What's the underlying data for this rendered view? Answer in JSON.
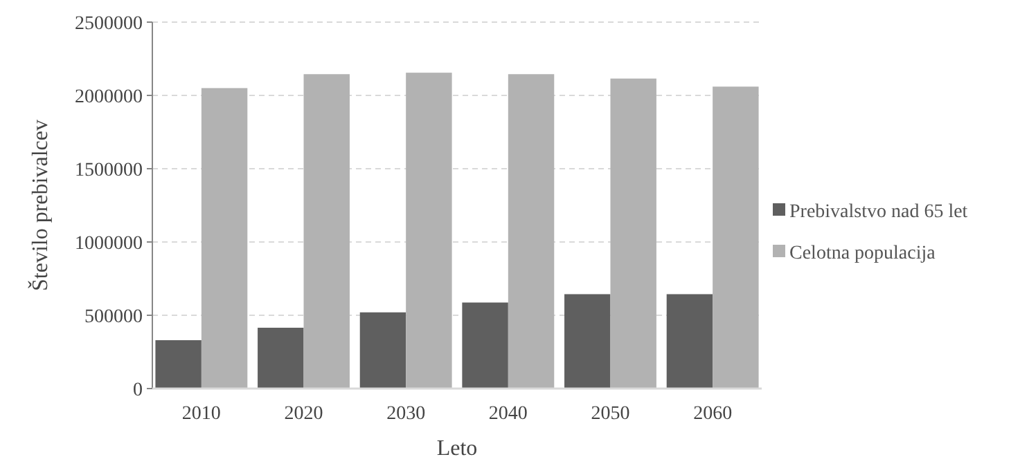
{
  "chart_data": {
    "type": "bar",
    "xlabel": "Leto",
    "ylabel": "Število prebivalcev",
    "categories": [
      "2010",
      "2020",
      "2030",
      "2040",
      "2050",
      "2060"
    ],
    "series": [
      {
        "name": "Prebivalstvo nad 65 let",
        "color": "#5f5f5f",
        "values": [
          330000,
          415000,
          520000,
          587000,
          644000,
          644000
        ]
      },
      {
        "name": "Celotna populacija",
        "color": "#b2b2b2",
        "values": [
          2050000,
          2145000,
          2155000,
          2145000,
          2115000,
          2060000
        ]
      }
    ],
    "ylim": [
      0,
      2500000
    ],
    "yticks": [
      0,
      500000,
      1000000,
      1500000,
      2000000,
      2500000
    ],
    "grid": "y",
    "legend": "right"
  }
}
